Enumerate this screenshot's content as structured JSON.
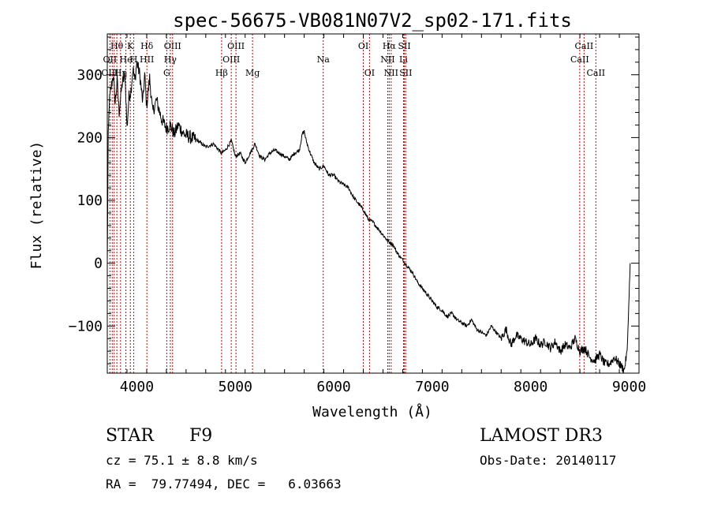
{
  "chart_data": {
    "type": "line",
    "title": "spec-56675-VB081N07V2_sp02-171.fits",
    "xlabel": "Wavelength (Å)",
    "ylabel": "Flux (relative)",
    "xlim": [
      3700,
      9100
    ],
    "ylim": [
      -175,
      365
    ],
    "xticks": [
      4000,
      5000,
      6000,
      7000,
      8000,
      9000
    ],
    "yticks": [
      -100,
      0,
      100,
      200,
      300
    ],
    "series": [
      {
        "name": "spectrum",
        "x": [
          3700,
          3710,
          3720,
          3740,
          3760,
          3780,
          3800,
          3820,
          3850,
          3880,
          3900,
          3920,
          3940,
          3960,
          3980,
          4000,
          4030,
          4060,
          4080,
          4100,
          4130,
          4160,
          4200,
          4250,
          4300,
          4340,
          4380,
          4420,
          4480,
          4550,
          4620,
          4700,
          4780,
          4860,
          4900,
          4960,
          5000,
          5050,
          5100,
          5150,
          5200,
          5250,
          5300,
          5350,
          5400,
          5450,
          5500,
          5550,
          5600,
          5650,
          5680,
          5700,
          5720,
          5750,
          5800,
          5850,
          5900,
          5950,
          6000,
          6050,
          6100,
          6150,
          6200,
          6250,
          6300,
          6350,
          6400,
          6450,
          6500,
          6550,
          6600,
          6650,
          6700,
          6750,
          6800,
          6850,
          6900,
          6950,
          7000,
          7050,
          7100,
          7150,
          7200,
          7250,
          7300,
          7350,
          7400,
          7450,
          7500,
          7550,
          7600,
          7650,
          7700,
          7750,
          7800,
          7850,
          7900,
          7950,
          8000,
          8050,
          8100,
          8150,
          8200,
          8250,
          8300,
          8350,
          8400,
          8450,
          8500,
          8550,
          8600,
          8650,
          8700,
          8750,
          8800,
          8850,
          8900,
          8950,
          8980,
          9000,
          9010
        ],
        "values": [
          0,
          200,
          255,
          280,
          300,
          255,
          290,
          240,
          285,
          300,
          215,
          265,
          275,
          310,
          290,
          320,
          300,
          255,
          300,
          250,
          295,
          240,
          260,
          230,
          215,
          220,
          205,
          220,
          205,
          200,
          195,
          185,
          190,
          175,
          180,
          195,
          170,
          175,
          160,
          175,
          190,
          170,
          165,
          175,
          180,
          175,
          170,
          165,
          175,
          180,
          205,
          210,
          195,
          180,
          160,
          150,
          155,
          140,
          140,
          130,
          125,
          120,
          105,
          95,
          85,
          70,
          65,
          55,
          45,
          35,
          30,
          15,
          5,
          -5,
          -15,
          -30,
          -40,
          -50,
          -60,
          -70,
          -75,
          -85,
          -80,
          -90,
          -95,
          -100,
          -90,
          -105,
          -110,
          -115,
          -100,
          -110,
          -120,
          -105,
          -130,
          -115,
          -120,
          -125,
          -130,
          -120,
          -130,
          -125,
          -135,
          -125,
          -140,
          -130,
          -135,
          -120,
          -140,
          -135,
          -150,
          -155,
          -145,
          -160,
          -160,
          -150,
          -160,
          -170,
          -140,
          -50,
          0
        ]
      }
    ],
    "line_labels": [
      {
        "label": "Hθ",
        "x": 3797,
        "row": 1
      },
      {
        "label": "K",
        "x": 3934,
        "row": 1
      },
      {
        "label": "Hδ",
        "x": 4102,
        "row": 1
      },
      {
        "label": "OIII",
        "x": 4363,
        "row": 1
      },
      {
        "label": "OIII",
        "x": 5007,
        "row": 1
      },
      {
        "label": "OI",
        "x": 6300,
        "row": 1
      },
      {
        "label": "Hα",
        "x": 6563,
        "row": 1
      },
      {
        "label": "SII",
        "x": 6717,
        "row": 1
      },
      {
        "label": "CaII",
        "x": 8542,
        "row": 1
      },
      {
        "label": "OII",
        "x": 3727,
        "row": 2
      },
      {
        "label": "He",
        "x": 3889,
        "row": 2
      },
      {
        "label": "H",
        "x": 3969,
        "row": 2
      },
      {
        "label": "HII",
        "x": 4102,
        "row": 2
      },
      {
        "label": "Hγ",
        "x": 4340,
        "row": 2
      },
      {
        "label": "OIII",
        "x": 4959,
        "row": 2
      },
      {
        "label": "Na",
        "x": 5893,
        "row": 2
      },
      {
        "label": "NII",
        "x": 6548,
        "row": 2
      },
      {
        "label": "Li",
        "x": 6708,
        "row": 2
      },
      {
        "label": "CaII",
        "x": 8498,
        "row": 2
      },
      {
        "label": "OIII",
        "x": 3727,
        "row": 3
      },
      {
        "label": "Hη",
        "x": 3835,
        "row": 3
      },
      {
        "label": "G",
        "x": 4304,
        "row": 3
      },
      {
        "label": "Hβ",
        "x": 4861,
        "row": 3
      },
      {
        "label": "Mg",
        "x": 5175,
        "row": 3
      },
      {
        "label": "OI",
        "x": 6363,
        "row": 3
      },
      {
        "label": "NII",
        "x": 6583,
        "row": 3
      },
      {
        "label": "SII",
        "x": 6731,
        "row": 3
      },
      {
        "label": "CaII",
        "x": 8662,
        "row": 3
      }
    ],
    "vlines": [
      3727,
      3750,
      3770,
      3797,
      3835,
      3889,
      3934,
      3969,
      4102,
      4304,
      4340,
      4363,
      4861,
      4959,
      5007,
      5175,
      5893,
      6300,
      6363,
      6548,
      6563,
      6583,
      6708,
      6717,
      6731,
      8498,
      8542,
      8662
    ],
    "colors": {
      "spectrum": "#000000",
      "vline": "#cc0000",
      "axes": "#000000"
    }
  },
  "info": {
    "object_class": "STAR",
    "subclass": "F9",
    "survey": "LAMOST DR3",
    "cz": "cz = 75.1 ± 8.8 km/s",
    "obs_date": "Obs-Date: 20140117",
    "coords": "RA =  79.77494, DEC =   6.03663"
  }
}
